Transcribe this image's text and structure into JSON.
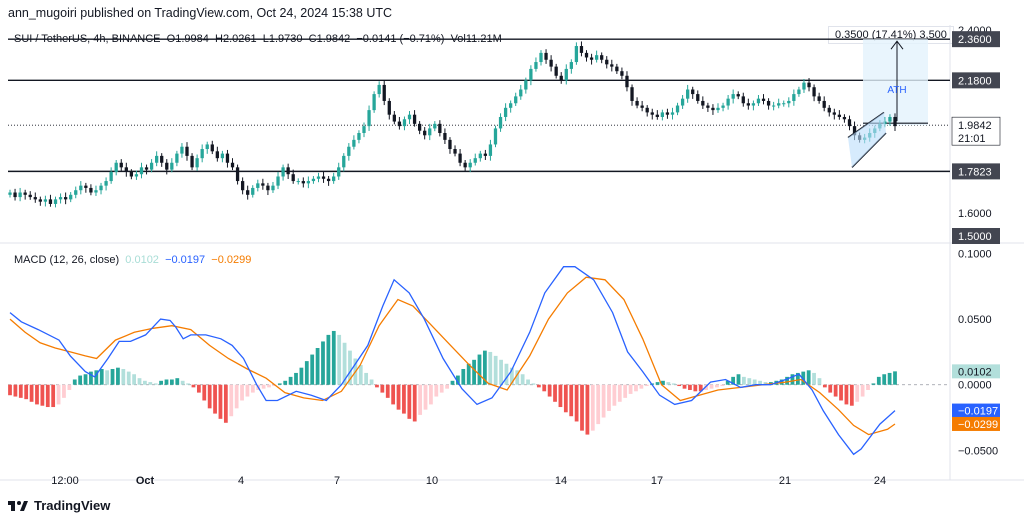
{
  "byline": "ann_mugoiri published on TradingView.com, Oct 24, 2024 15:38 UTC",
  "legend": {
    "symbol": "SUI / TetherUS, 4h, BINANCE",
    "o_label": "O",
    "o": "1.9984",
    "h_label": "H",
    "h": "2.0261",
    "l_label": "L",
    "l": "1.9730",
    "c_label": "C",
    "c": "1.9842",
    "change": "−0.0141 (−0.71%)",
    "vol_label": "Vol",
    "vol": "11.21M"
  },
  "macd_legend": {
    "title": "MACD (12, 26, close)",
    "histogram": "0.0102",
    "macd": "−0.0197",
    "signal": "−0.0299"
  },
  "measure_label": "0.3500 (17.41%) 3,500",
  "annotation": "ATH",
  "footer": {
    "brand": "TradingView"
  },
  "colors": {
    "up": "#26a69a",
    "down": "#131722",
    "macd": "#2962ff",
    "signal": "#f57c00",
    "hist_pos_strong": "#26a69a",
    "hist_pos_weak": "#b2dfdb",
    "hist_neg_strong": "#ef5350",
    "hist_neg_weak": "#ffcdd2",
    "pattern": "#131722",
    "measure_fill": "#e3f2fd"
  },
  "chart_data": [
    {
      "type": "candlestick",
      "title": "SUI / TetherUS, 4h, BINANCE",
      "ylim": [
        1.5,
        2.4
      ],
      "price_axis_ticks": [
        1.6,
        1.8,
        2.0,
        2.2,
        2.4
      ],
      "x_ticks": [
        "12:00",
        "Oct",
        "4",
        "7",
        "10",
        "14",
        "17",
        "21",
        "24"
      ],
      "horizontal_levels": [
        2.36,
        2.18,
        1.7823
      ],
      "level_labels": [
        "2.3600",
        "2.1800",
        "1.7823",
        "1.5000"
      ],
      "last_price": "1.9842",
      "countdown": "21:01",
      "ath_target": 2.36,
      "closes": [
        1.69,
        1.67,
        1.69,
        1.68,
        1.67,
        1.66,
        1.65,
        1.66,
        1.64,
        1.66,
        1.67,
        1.66,
        1.68,
        1.7,
        1.72,
        1.71,
        1.69,
        1.7,
        1.72,
        1.74,
        1.78,
        1.82,
        1.8,
        1.78,
        1.76,
        1.77,
        1.8,
        1.79,
        1.82,
        1.85,
        1.82,
        1.79,
        1.82,
        1.86,
        1.89,
        1.85,
        1.8,
        1.84,
        1.88,
        1.9,
        1.87,
        1.84,
        1.86,
        1.82,
        1.8,
        1.74,
        1.7,
        1.68,
        1.71,
        1.73,
        1.72,
        1.7,
        1.72,
        1.76,
        1.8,
        1.77,
        1.74,
        1.74,
        1.73,
        1.74,
        1.75,
        1.76,
        1.75,
        1.74,
        1.76,
        1.8,
        1.85,
        1.89,
        1.92,
        1.95,
        1.98,
        2.05,
        2.12,
        2.16,
        2.09,
        2.03,
        2.0,
        1.98,
        2.01,
        2.03,
        1.99,
        1.96,
        1.94,
        1.97,
        1.99,
        1.95,
        1.92,
        1.88,
        1.86,
        1.82,
        1.8,
        1.82,
        1.84,
        1.86,
        1.85,
        1.9,
        1.97,
        2.02,
        2.06,
        2.08,
        2.11,
        2.14,
        2.18,
        2.23,
        2.26,
        2.3,
        2.27,
        2.24,
        2.2,
        2.18,
        2.23,
        2.26,
        2.33,
        2.3,
        2.28,
        2.27,
        2.29,
        2.27,
        2.25,
        2.24,
        2.22,
        2.2,
        2.15,
        2.09,
        2.07,
        2.06,
        2.04,
        2.03,
        2.02,
        2.04,
        2.03,
        2.04,
        2.07,
        2.1,
        2.14,
        2.12,
        2.09,
        2.07,
        2.06,
        2.05,
        2.06,
        2.07,
        2.1,
        2.12,
        2.11,
        2.08,
        2.07,
        2.08,
        2.1,
        2.09,
        2.07,
        2.07,
        2.08,
        2.08,
        2.09,
        2.12,
        2.14,
        2.17,
        2.15,
        2.11,
        2.09,
        2.06,
        2.04,
        2.03,
        2.02,
        2.01,
        1.98,
        1.94,
        1.92,
        1.93,
        1.95,
        1.97,
        1.99,
        2.0,
        2.02,
        1.98
      ]
    },
    {
      "type": "macd",
      "title": "MACD (12, 26, close)",
      "ylim": [
        -0.065,
        0.105
      ],
      "y_ticks": [
        0.1,
        0.05,
        0.0,
        -0.05
      ],
      "y_tick_labels": [
        "0.1000",
        "0.0500",
        "0.0000",
        "−0.0500"
      ],
      "value_labels": [
        "0.0102",
        "−0.0197",
        "−0.0299"
      ],
      "macd_points": [
        [
          0,
          0.055
        ],
        [
          6,
          0.048
        ],
        [
          15,
          0.042
        ],
        [
          26,
          0.034
        ],
        [
          32,
          0.022
        ],
        [
          40,
          0.01
        ],
        [
          45,
          0.006
        ],
        [
          52,
          0.02
        ],
        [
          58,
          0.033
        ],
        [
          64,
          0.033
        ],
        [
          72,
          0.038
        ],
        [
          80,
          0.05
        ],
        [
          85,
          0.049
        ],
        [
          88,
          0.044
        ],
        [
          92,
          0.035
        ],
        [
          96,
          0.038
        ],
        [
          104,
          0.038
        ],
        [
          112,
          0.035
        ],
        [
          118,
          0.03
        ],
        [
          124,
          0.02
        ],
        [
          131,
          0.0
        ],
        [
          136,
          -0.012
        ],
        [
          142,
          -0.012
        ],
        [
          152,
          -0.005
        ],
        [
          160,
          -0.008
        ],
        [
          168,
          -0.012
        ],
        [
          176,
          0.0
        ],
        [
          190,
          0.03
        ],
        [
          198,
          0.06
        ],
        [
          204,
          0.08
        ],
        [
          212,
          0.07
        ],
        [
          220,
          0.05
        ],
        [
          230,
          0.02
        ],
        [
          240,
          -0.003
        ],
        [
          248,
          -0.015
        ],
        [
          256,
          -0.01
        ],
        [
          266,
          0.01
        ],
        [
          276,
          0.04
        ],
        [
          284,
          0.07
        ],
        [
          294,
          0.09
        ],
        [
          300,
          0.09
        ],
        [
          310,
          0.08
        ],
        [
          320,
          0.055
        ],
        [
          328,
          0.025
        ],
        [
          336,
          0.01
        ],
        [
          345,
          -0.008
        ],
        [
          353,
          -0.015
        ],
        [
          362,
          -0.012
        ],
        [
          372,
          0.002
        ],
        [
          380,
          0.004
        ],
        [
          388,
          -0.002
        ],
        [
          396,
          0.0
        ],
        [
          404,
          0.0
        ],
        [
          412,
          0.004
        ],
        [
          419,
          0.008
        ],
        [
          426,
          -0.004
        ],
        [
          432,
          -0.02
        ],
        [
          440,
          -0.038
        ],
        [
          448,
          -0.053
        ],
        [
          452,
          -0.049
        ],
        [
          462,
          -0.03
        ],
        [
          470,
          -0.0197
        ]
      ],
      "signal_points": [
        [
          0,
          0.05
        ],
        [
          8,
          0.04
        ],
        [
          16,
          0.032
        ],
        [
          24,
          0.028
        ],
        [
          32,
          0.025
        ],
        [
          40,
          0.022
        ],
        [
          46,
          0.02
        ],
        [
          56,
          0.034
        ],
        [
          66,
          0.04
        ],
        [
          76,
          0.043
        ],
        [
          86,
          0.045
        ],
        [
          96,
          0.042
        ],
        [
          106,
          0.03
        ],
        [
          116,
          0.02
        ],
        [
          126,
          0.012
        ],
        [
          136,
          0.005
        ],
        [
          146,
          -0.006
        ],
        [
          156,
          -0.01
        ],
        [
          166,
          -0.012
        ],
        [
          176,
          -0.005
        ],
        [
          186,
          0.015
        ],
        [
          196,
          0.045
        ],
        [
          206,
          0.065
        ],
        [
          214,
          0.06
        ],
        [
          224,
          0.045
        ],
        [
          234,
          0.03
        ],
        [
          244,
          0.015
        ],
        [
          254,
          0.001
        ],
        [
          264,
          -0.004
        ],
        [
          276,
          0.022
        ],
        [
          286,
          0.05
        ],
        [
          296,
          0.07
        ],
        [
          306,
          0.082
        ],
        [
          316,
          0.08
        ],
        [
          326,
          0.065
        ],
        [
          336,
          0.035
        ],
        [
          346,
          0.0
        ],
        [
          356,
          -0.012
        ],
        [
          366,
          -0.008
        ],
        [
          376,
          -0.004
        ],
        [
          388,
          -0.002
        ],
        [
          400,
          0.0
        ],
        [
          412,
          0.002
        ],
        [
          420,
          0.004
        ],
        [
          430,
          -0.006
        ],
        [
          440,
          -0.019
        ],
        [
          448,
          -0.031
        ],
        [
          456,
          -0.038
        ],
        [
          466,
          -0.034
        ],
        [
          470,
          -0.0299
        ]
      ],
      "histogram": [
        -0.008,
        -0.009,
        -0.01,
        -0.011,
        -0.013,
        -0.015,
        -0.016,
        -0.017,
        -0.017,
        -0.015,
        -0.01,
        -0.004,
        0.004,
        0.007,
        0.008,
        0.01,
        0.011,
        0.012,
        0.011,
        0.012,
        0.013,
        0.012,
        0.01,
        0.008,
        0.005,
        0.003,
        0.002,
        0.001,
        0.003,
        0.004,
        0.004,
        0.005,
        0.003,
        0.001,
        -0.002,
        -0.006,
        -0.012,
        -0.018,
        -0.022,
        -0.026,
        -0.029,
        -0.024,
        -0.018,
        -0.012,
        -0.009,
        -0.006,
        -0.004,
        -0.003,
        -0.002,
        -0.001,
        0.001,
        0.003,
        0.006,
        0.009,
        0.013,
        0.018,
        0.023,
        0.028,
        0.033,
        0.038,
        0.041,
        0.038,
        0.032,
        0.026,
        0.02,
        0.015,
        0.009,
        0.004,
        -0.002,
        -0.006,
        -0.01,
        -0.015,
        -0.019,
        -0.022,
        -0.026,
        -0.028,
        -0.023,
        -0.019,
        -0.015,
        -0.009,
        -0.006,
        -0.003,
        0.003,
        0.007,
        0.012,
        0.016,
        0.019,
        0.023,
        0.026,
        0.025,
        0.022,
        0.019,
        0.016,
        0.013,
        0.011,
        0.008,
        0.004,
        0.001,
        -0.002,
        -0.005,
        -0.009,
        -0.013,
        -0.017,
        -0.021,
        -0.024,
        -0.028,
        -0.035,
        -0.038,
        -0.035,
        -0.03,
        -0.025,
        -0.02,
        -0.016,
        -0.013,
        -0.01,
        -0.007,
        -0.005,
        -0.003,
        -0.001,
        0.001,
        0.002,
        0.003,
        0.002,
        0.001,
        -0.001,
        -0.003,
        -0.004,
        -0.005,
        -0.005,
        -0.004,
        -0.003,
        -0.002,
        -0.001,
        0.003,
        0.006,
        0.008,
        0.006,
        0.005,
        0.004,
        0.003,
        0.002,
        0.002,
        0.003,
        0.004,
        0.006,
        0.008,
        0.009,
        0.01,
        0.011,
        0.009,
        0.005,
        -0.002,
        -0.006,
        -0.009,
        -0.012,
        -0.015,
        -0.016,
        -0.013,
        -0.009,
        -0.004,
        0.001,
        0.006,
        0.008,
        0.009,
        0.0102
      ]
    }
  ]
}
